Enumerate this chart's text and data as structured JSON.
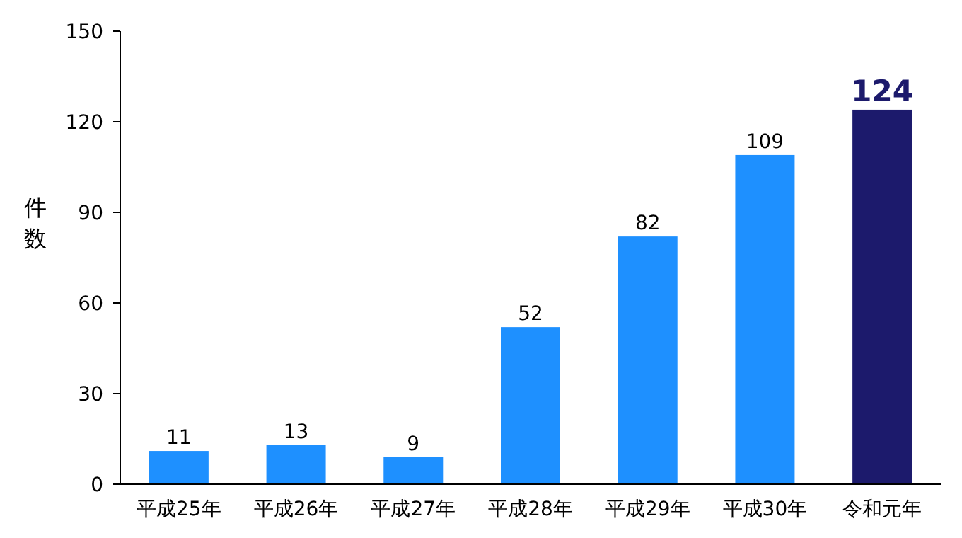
{
  "chart_data": {
    "type": "bar",
    "ylabel": "件数",
    "categories": [
      "平成25年",
      "平成26年",
      "平成27年",
      "平成28年",
      "平成29年",
      "平成30年",
      "令和元年"
    ],
    "values": [
      11,
      13,
      9,
      52,
      82,
      109,
      124
    ],
    "colors": [
      "#1e90ff",
      "#1e90ff",
      "#1e90ff",
      "#1e90ff",
      "#1e90ff",
      "#1e90ff",
      "#1c1a6c"
    ],
    "ylim": [
      0,
      150
    ],
    "yticks": [
      0,
      30,
      60,
      90,
      120,
      150
    ],
    "data_labels": true,
    "grid": false
  }
}
